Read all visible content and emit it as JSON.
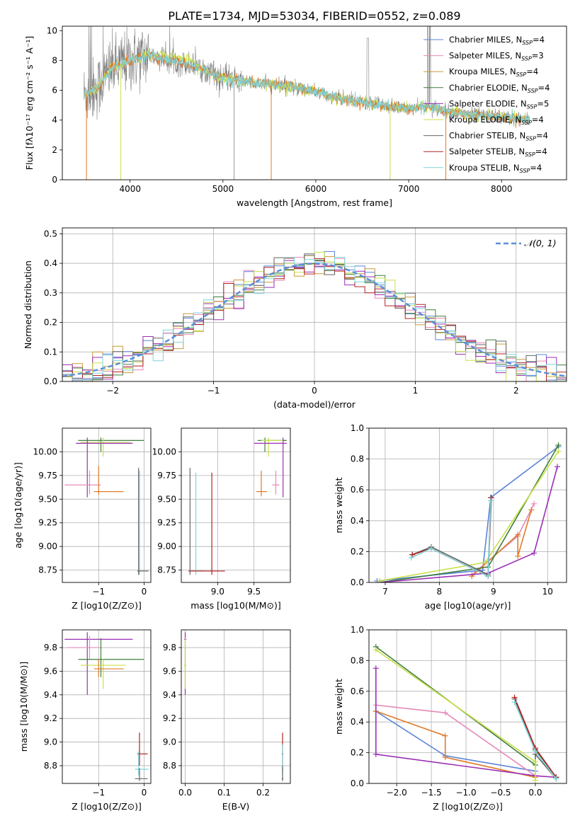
{
  "title": "PLATE=1734, MJD=53034, FIBERID=0552, z=0.089",
  "colors": {
    "Chabrier MILES": "#5b84d8",
    "Salpeter MILES": "#e68ab8",
    "Kroupa MILES": "#c79a3a",
    "Chabrier ELODIE": "#3f7f3f",
    "Salpeter ELODIE": "#9b2fb5",
    "Kroupa ELODIE": "#c8e04a",
    "Chabrier STELIB": "#666666",
    "Salpeter STELIB": "#b22222",
    "Kroupa STELIB": "#7fd3d8",
    "orange": "#e07b2a",
    "grey_spectrum": "#808080",
    "gaussian": "#5b8fd8"
  },
  "chart_data": [
    {
      "id": "spectrum",
      "type": "line",
      "xlabel": "wavelength [Angstrom, rest frame]",
      "ylabel": "Flux [fλ10⁻¹⁷ erg cm⁻² s⁻¹ A⁻¹]",
      "xlim": [
        3270,
        8700
      ],
      "ylim": [
        0,
        10.3
      ],
      "xticks": [
        4000,
        5000,
        6000,
        7000,
        8000
      ],
      "yticks": [
        0,
        2,
        4,
        6,
        8,
        10
      ],
      "legend_position": "top-right",
      "legend": [
        {
          "name": "Chabrier MILES",
          "nssp": "4"
        },
        {
          "name": "Salpeter MILES",
          "nssp": "3"
        },
        {
          "name": "Kroupa MILES",
          "nssp": "4"
        },
        {
          "name": "Chabrier ELODIE",
          "nssp": "4"
        },
        {
          "name": "Salpeter ELODIE",
          "nssp": "5"
        },
        {
          "name": "Kroupa ELODIE",
          "nssp": "4"
        },
        {
          "name": "Chabrier STELIB",
          "nssp": "4"
        },
        {
          "name": "Salpeter STELIB",
          "nssp": "4"
        },
        {
          "name": "Kroupa STELIB",
          "nssp": "4"
        }
      ],
      "continuum": [
        [
          3500,
          5.7
        ],
        [
          3650,
          6.2
        ],
        [
          3800,
          7.5
        ],
        [
          4000,
          8.0
        ],
        [
          4200,
          8.4
        ],
        [
          4400,
          8.0
        ],
        [
          4600,
          7.8
        ],
        [
          4800,
          7.4
        ],
        [
          5000,
          6.8
        ],
        [
          5200,
          6.6
        ],
        [
          5500,
          6.4
        ],
        [
          5800,
          6.2
        ],
        [
          6000,
          5.9
        ],
        [
          6200,
          5.5
        ],
        [
          6400,
          5.3
        ],
        [
          6600,
          5.1
        ],
        [
          6800,
          4.9
        ],
        [
          7000,
          4.8
        ],
        [
          7200,
          4.9
        ],
        [
          7500,
          4.5
        ],
        [
          7800,
          4.3
        ],
        [
          8000,
          4.2
        ],
        [
          8300,
          4.0
        ]
      ]
    },
    {
      "id": "residuals",
      "type": "line",
      "xlabel": "(data-model)/error",
      "ylabel": "Normed distribution",
      "xlim": [
        -2.5,
        2.5
      ],
      "ylim": [
        0,
        0.52
      ],
      "xticks": [
        -2,
        -1,
        0,
        1,
        2
      ],
      "yticks": [
        0.0,
        0.1,
        0.2,
        0.3,
        0.4,
        0.5
      ],
      "grid": true,
      "legend_position": "top-right",
      "legend": [
        "N(0,1)"
      ]
    },
    {
      "id": "age_vs_Z",
      "type": "scatter",
      "xlabel": "Z [log10(Z/Z⊙)]",
      "ylabel": "age  [log10(age/yr)]",
      "xlim": [
        -1.8,
        0.15
      ],
      "ylim": [
        8.62,
        10.25
      ],
      "xticks": [
        -1,
        0
      ],
      "yticks": [
        8.75,
        9.0,
        9.25,
        9.5,
        9.75,
        10.0
      ],
      "grid": true
    },
    {
      "id": "age_vs_mass",
      "type": "scatter",
      "xlabel": "mass [log10(M/M⊙)]",
      "xlim": [
        8.5,
        10.0
      ],
      "ylim": [
        8.62,
        10.25
      ],
      "xticks": [
        9.0,
        9.5
      ],
      "yticks": [
        8.75,
        9.0,
        9.25,
        9.5,
        9.75,
        10.0
      ],
      "grid": true
    },
    {
      "id": "weight_vs_age",
      "type": "line",
      "xlabel": "age  [log10(age/yr)]",
      "ylabel": "mass weight",
      "xlim": [
        6.7,
        10.35
      ],
      "ylim": [
        0,
        1.0
      ],
      "xticks": [
        7,
        8,
        9,
        10
      ],
      "yticks": [
        0.0,
        0.2,
        0.4,
        0.6,
        0.8,
        1.0
      ],
      "grid": true,
      "series": [
        {
          "name": "Chabrier MILES",
          "points": [
            [
              6.85,
              0.01
            ],
            [
              8.8,
              0.08
            ],
            [
              8.95,
              0.55
            ],
            [
              10.2,
              0.88
            ]
          ]
        },
        {
          "name": "Salpeter MILES",
          "points": [
            [
              8.6,
              0.05
            ],
            [
              9.45,
              0.3
            ],
            [
              9.75,
              0.51
            ]
          ]
        },
        {
          "name": "Orange",
          "points": [
            [
              8.6,
              0.04
            ],
            [
              9.45,
              0.31
            ],
            [
              9.45,
              0.17
            ],
            [
              9.7,
              0.47
            ]
          ]
        },
        {
          "name": "Chabrier ELODIE",
          "points": [
            [
              6.9,
              0.0
            ],
            [
              8.9,
              0.1
            ],
            [
              10.2,
              0.89
            ]
          ]
        },
        {
          "name": "Salpeter ELODIE",
          "points": [
            [
              6.9,
              0.0
            ],
            [
              8.9,
              0.06
            ],
            [
              9.75,
              0.19
            ],
            [
              10.18,
              0.75
            ]
          ]
        },
        {
          "name": "Kroupa ELODIE",
          "points": [
            [
              6.9,
              0.01
            ],
            [
              8.85,
              0.13
            ],
            [
              10.2,
              0.85
            ]
          ]
        },
        {
          "name": "Chabrier STELIB",
          "points": [
            [
              7.5,
              0.18
            ],
            [
              7.85,
              0.23
            ],
            [
              8.9,
              0.05
            ],
            [
              8.95,
              0.55
            ]
          ]
        },
        {
          "name": "Salpeter STELIB",
          "points": [
            [
              7.5,
              0.18
            ],
            [
              7.85,
              0.22
            ],
            [
              8.9,
              0.04
            ],
            [
              8.96,
              0.55
            ]
          ]
        },
        {
          "name": "Kroupa STELIB",
          "points": [
            [
              7.48,
              0.16
            ],
            [
              7.85,
              0.22
            ],
            [
              8.9,
              0.04
            ],
            [
              8.95,
              0.53
            ]
          ]
        }
      ]
    },
    {
      "id": "mass_vs_Z",
      "type": "scatter",
      "xlabel": "Z [log10(Z/Z⊙)]",
      "ylabel": "mass [log10(M/M⊙)]",
      "xlim": [
        -1.8,
        0.15
      ],
      "ylim": [
        8.65,
        9.95
      ],
      "xticks": [
        -1,
        0
      ],
      "yticks": [
        8.8,
        9.0,
        9.2,
        9.4,
        9.6,
        9.8
      ],
      "grid": true
    },
    {
      "id": "mass_vs_ebv",
      "type": "scatter",
      "xlabel": "E(B-V)",
      "xlim": [
        -0.01,
        0.27
      ],
      "ylim": [
        8.65,
        9.95
      ],
      "xticks": [
        0.0,
        0.1,
        0.2
      ],
      "yticks": [
        8.8,
        9.0,
        9.2,
        9.4,
        9.6,
        9.8
      ],
      "grid": true
    },
    {
      "id": "weight_vs_Z",
      "type": "line",
      "xlabel": "Z [log10(Z/Z⊙)]",
      "ylabel": "mass weight",
      "xlim": [
        -2.4,
        0.45
      ],
      "ylim": [
        0,
        1.0
      ],
      "xticks": [
        -2.0,
        -1.5,
        -1.0,
        -0.5,
        0.0
      ],
      "yticks": [
        0.0,
        0.2,
        0.4,
        0.6,
        0.8,
        1.0
      ],
      "grid": true,
      "series": [
        {
          "name": "Chabrier MILES",
          "points": [
            [
              -2.3,
              0.47
            ],
            [
              -1.3,
              0.18
            ],
            [
              0.0,
              0.08
            ]
          ]
        },
        {
          "name": "Salpeter MILES",
          "points": [
            [
              -2.3,
              0.51
            ],
            [
              -1.3,
              0.46
            ],
            [
              0.0,
              0.05
            ]
          ]
        },
        {
          "name": "Orange",
          "points": [
            [
              -2.3,
              0.47
            ],
            [
              -1.3,
              0.31
            ],
            [
              -1.3,
              0.17
            ],
            [
              0.0,
              0.04
            ]
          ]
        },
        {
          "name": "Chabrier ELODIE",
          "points": [
            [
              -2.3,
              0.89
            ],
            [
              0.0,
              0.12
            ],
            [
              0.0,
              0.22
            ],
            [
              0.3,
              0.04
            ]
          ]
        },
        {
          "name": "Salpeter ELODIE",
          "points": [
            [
              -2.3,
              0.75
            ],
            [
              -2.3,
              0.19
            ],
            [
              0.0,
              0.05
            ],
            [
              0.3,
              0.04
            ]
          ]
        },
        {
          "name": "Kroupa ELODIE",
          "points": [
            [
              -2.3,
              0.87
            ],
            [
              0.0,
              0.14
            ],
            [
              0.0,
              0.02
            ]
          ]
        },
        {
          "name": "Chabrier STELIB",
          "points": [
            [
              -0.3,
              0.55
            ],
            [
              0.0,
              0.22
            ],
            [
              0.0,
              0.19
            ],
            [
              0.3,
              0.03
            ]
          ]
        },
        {
          "name": "Salpeter STELIB",
          "points": [
            [
              -0.3,
              0.56
            ],
            [
              0.0,
              0.23
            ],
            [
              0.3,
              0.04
            ]
          ]
        },
        {
          "name": "Kroupa STELIB",
          "points": [
            [
              -0.3,
              0.53
            ],
            [
              0.0,
              0.21
            ],
            [
              0.3,
              0.03
            ]
          ]
        }
      ]
    }
  ]
}
